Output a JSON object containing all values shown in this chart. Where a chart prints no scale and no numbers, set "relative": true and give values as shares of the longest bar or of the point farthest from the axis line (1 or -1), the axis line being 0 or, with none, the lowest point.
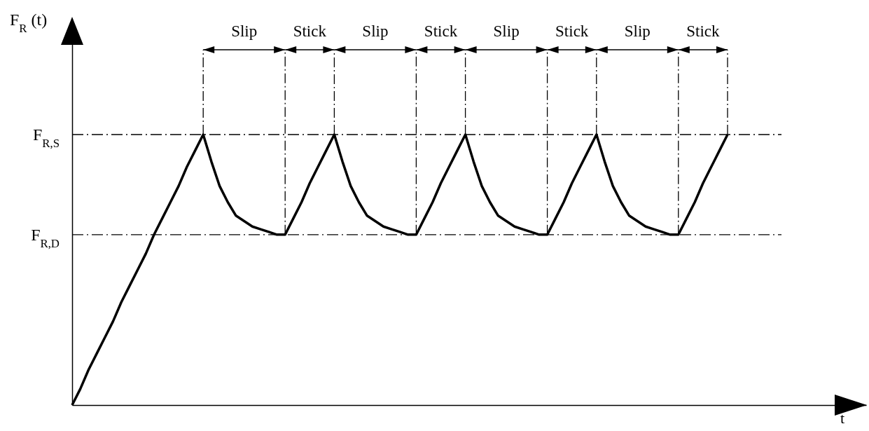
{
  "chart_data": {
    "type": "line",
    "relative": true,
    "categories": [
      null,
      null,
      null,
      null,
      null,
      null,
      null,
      null,
      null,
      null,
      null,
      null,
      null,
      null,
      null,
      null,
      null,
      null,
      null,
      null,
      null,
      null,
      null,
      null,
      null,
      null,
      null,
      null,
      null,
      null,
      null,
      null,
      null,
      null,
      null,
      null,
      null,
      null,
      null,
      null,
      null,
      null,
      null,
      null,
      null,
      null,
      null,
      null,
      null,
      null,
      null,
      null,
      null,
      null,
      null,
      null,
      null,
      null,
      null,
      null,
      null,
      null,
      null,
      null,
      null,
      null,
      null,
      null,
      null,
      null,
      null,
      null,
      null,
      null,
      null,
      null,
      null,
      null,
      null,
      null,
      null
    ],
    "series": [
      {
        "color": "#000000",
        "values": [
          0,
          0.06,
          0.13,
          0.19,
          0.25,
          0.31,
          0.38,
          0.44,
          0.5,
          0.56,
          0.63,
          0.69,
          0.75,
          0.81,
          0.88,
          0.94,
          1,
          0.9,
          0.81,
          0.75,
          0.7,
          0.68,
          0.66,
          0.65,
          0.64,
          0.63,
          0.63,
          0.69,
          0.75,
          0.82,
          0.88,
          0.94,
          1,
          0.9,
          0.81,
          0.75,
          0.7,
          0.68,
          0.66,
          0.65,
          0.64,
          0.63,
          0.63,
          0.69,
          0.75,
          0.82,
          0.88,
          0.94,
          1,
          0.9,
          0.81,
          0.75,
          0.7,
          0.68,
          0.66,
          0.65,
          0.64,
          0.63,
          0.63,
          0.69,
          0.75,
          0.82,
          0.88,
          0.94,
          1,
          0.9,
          0.81,
          0.75,
          0.7,
          0.68,
          0.66,
          0.65,
          0.64,
          0.63,
          0.63,
          0.69,
          0.75,
          0.82,
          0.88,
          0.94,
          1
        ]
      }
    ],
    "ref_lines": [
      {
        "axis": "y",
        "value": 1,
        "label": "F$_{R,S}$",
        "line_style": "dashdot"
      },
      {
        "axis": "y",
        "value": 0.63,
        "label": "F$_{R,D}$",
        "line_style": "dashdot"
      }
    ],
    "annotations": [
      "F$_{R}$ (t)",
      "t",
      "Slip",
      "Stick",
      "Slip",
      "Stick",
      "Slip",
      "Stick",
      "Slip",
      "Stick"
    ]
  }
}
